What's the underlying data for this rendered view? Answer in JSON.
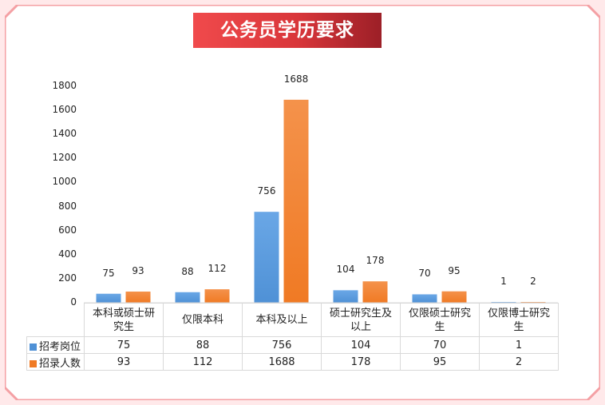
{
  "chart_data": {
    "type": "bar",
    "title": "公务员学历要求",
    "categories": [
      "本科或硕士研究生",
      "仅限本科",
      "本科及以上",
      "硕士研究生及以上",
      "仅限硕士研究生",
      "仅限博士研究生"
    ],
    "category_display": [
      "本科或硕士研\n究生",
      "仅限本科",
      "本科及以上",
      "硕士研究生及\n以上",
      "仅限硕士研究\n生",
      "仅限博士研究\n生"
    ],
    "series": [
      {
        "name": "招考岗位",
        "values": [
          75,
          88,
          756,
          104,
          70,
          1
        ],
        "color": "#4f91d6"
      },
      {
        "name": "招录人数",
        "values": [
          93,
          112,
          1688,
          178,
          95,
          2
        ],
        "color": "#f07a24"
      }
    ],
    "ylim": [
      0,
      1800
    ],
    "yticks": [
      0,
      200,
      400,
      600,
      800,
      1000,
      1200,
      1400,
      1600,
      1800
    ],
    "grid": false,
    "legend": "data-table"
  },
  "colors": {
    "background": "#ffe9ea",
    "panel": "#ffffff",
    "border": "#f4a0a4",
    "banner": "#e33b3e"
  }
}
